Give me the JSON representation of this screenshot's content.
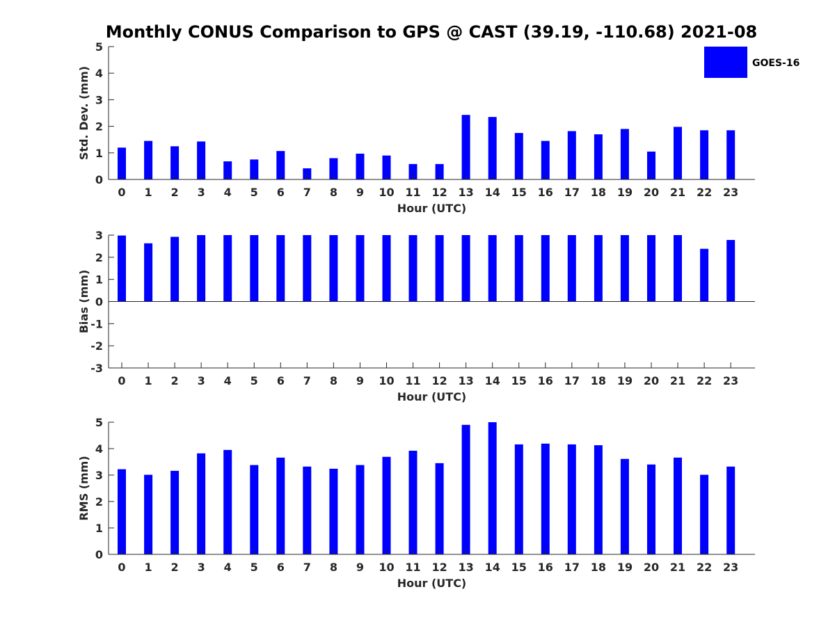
{
  "title": "Monthly CONUS Comparison to GPS @ CAST (39.19, -110.68) 2021-08",
  "legend": {
    "label": "GOES-16",
    "color": "#0000ff",
    "position": "top-right"
  },
  "chart_data": [
    {
      "type": "bar",
      "xlabel": "Hour (UTC)",
      "ylabel": "Std. Dev. (mm)",
      "ylim": [
        0,
        5
      ],
      "yticks": [
        0,
        1,
        2,
        3,
        4,
        5
      ],
      "categories": [
        "0",
        "1",
        "2",
        "3",
        "4",
        "5",
        "6",
        "7",
        "8",
        "9",
        "10",
        "11",
        "12",
        "13",
        "14",
        "15",
        "16",
        "17",
        "18",
        "19",
        "20",
        "21",
        "22",
        "23"
      ],
      "series": [
        {
          "name": "GOES-16",
          "values": [
            1.2,
            1.45,
            1.25,
            1.43,
            0.68,
            0.75,
            1.07,
            0.42,
            0.8,
            0.97,
            0.9,
            0.58,
            0.58,
            2.43,
            2.35,
            1.75,
            1.45,
            1.82,
            1.7,
            1.9,
            1.05,
            1.98,
            1.85,
            1.85
          ]
        }
      ],
      "grid": false
    },
    {
      "type": "bar",
      "xlabel": "Hour (UTC)",
      "ylabel": "Bias (mm)",
      "ylim": [
        -3,
        3
      ],
      "yticks": [
        -3,
        -2,
        -1,
        0,
        1,
        2,
        3
      ],
      "categories": [
        "0",
        "1",
        "2",
        "3",
        "4",
        "5",
        "6",
        "7",
        "8",
        "9",
        "10",
        "11",
        "12",
        "13",
        "14",
        "15",
        "16",
        "17",
        "18",
        "19",
        "20",
        "21",
        "22",
        "23"
      ],
      "series": [
        {
          "name": "GOES-16",
          "values": [
            2.98,
            2.63,
            2.92,
            3.0,
            3.0,
            3.0,
            3.0,
            3.0,
            3.0,
            3.0,
            3.0,
            3.0,
            3.0,
            3.0,
            3.0,
            3.0,
            3.0,
            3.0,
            3.0,
            3.0,
            3.0,
            3.0,
            2.38,
            2.78
          ]
        }
      ],
      "grid": false
    },
    {
      "type": "bar",
      "xlabel": "Hour (UTC)",
      "ylabel": "RMS (mm)",
      "ylim": [
        0,
        5
      ],
      "yticks": [
        0,
        1,
        2,
        3,
        4,
        5
      ],
      "categories": [
        "0",
        "1",
        "2",
        "3",
        "4",
        "5",
        "6",
        "7",
        "8",
        "9",
        "10",
        "11",
        "12",
        "13",
        "14",
        "15",
        "16",
        "17",
        "18",
        "19",
        "20",
        "21",
        "22",
        "23"
      ],
      "series": [
        {
          "name": "GOES-16",
          "values": [
            3.22,
            3.01,
            3.16,
            3.82,
            3.95,
            3.38,
            3.66,
            3.32,
            3.24,
            3.38,
            3.69,
            3.92,
            3.45,
            4.9,
            5.0,
            4.16,
            4.19,
            4.16,
            4.13,
            3.61,
            3.4,
            3.66,
            3.01,
            3.32
          ]
        }
      ],
      "grid": false
    }
  ]
}
